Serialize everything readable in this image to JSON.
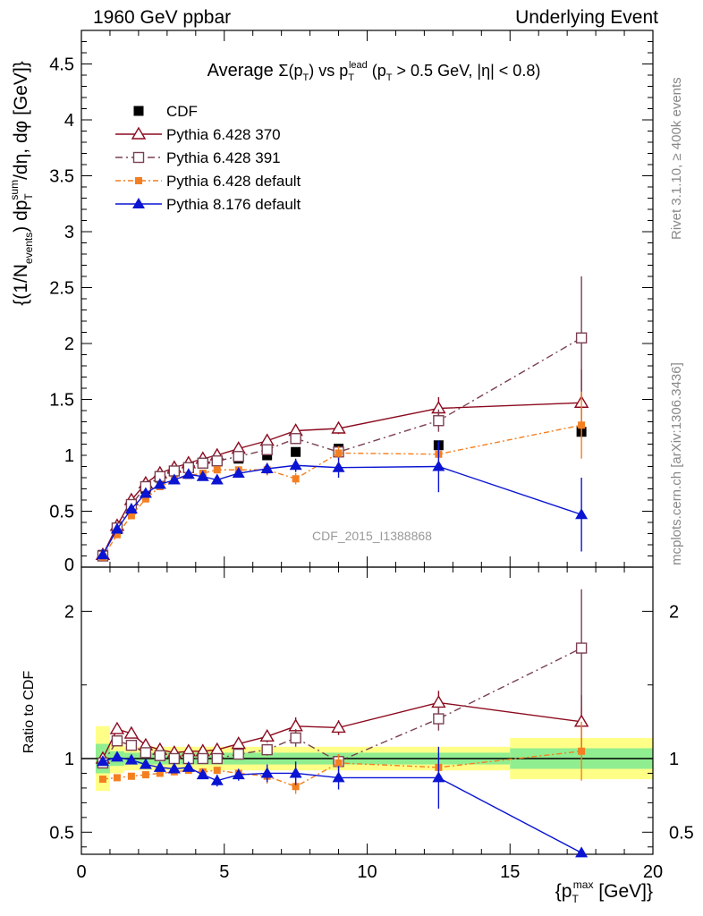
{
  "header": {
    "left": "1960 GeV ppbar",
    "right": "Underlying Event"
  },
  "side_labels": {
    "rivet": "Rivet 3.1.10, ≥ 400k events",
    "mcplots": "mcplots.cern.ch [arXiv:1306.3436]"
  },
  "chart_data": [
    {
      "type": "line",
      "title": "Average Σ(p_T) vs p_T^lead (p_T > 0.5 GeV, |η| < 0.8)",
      "ylabel": "{(1/N_events) dp_T^sum/dη, dφ [GeV]}",
      "xlim": [
        0,
        20
      ],
      "ylim": [
        0,
        4.8
      ],
      "yticks": [
        "0.5",
        "1",
        "1.5",
        "2",
        "2.5",
        "3",
        "3.5",
        "4",
        "4.5"
      ],
      "annotation": "CDF_2015_I1388868",
      "legend_position": "top-left",
      "series": [
        {
          "name": "CDF",
          "style": "data",
          "color": "#000000",
          "x": [
            0.75,
            1.25,
            1.75,
            2.25,
            2.75,
            3.25,
            3.75,
            4.25,
            4.75,
            5.5,
            6.5,
            7.5,
            9,
            12.5,
            17.5
          ],
          "y": [
            0.11,
            0.34,
            0.52,
            0.7,
            0.8,
            0.86,
            0.89,
            0.93,
            0.95,
            0.97,
            1.0,
            1.03,
            1.06,
            1.09,
            1.21
          ]
        },
        {
          "name": "Pythia 6.428 370",
          "style": "p370",
          "color": "#8b0a1e",
          "x": [
            0.75,
            1.25,
            1.75,
            2.25,
            2.75,
            3.25,
            3.75,
            4.25,
            4.75,
            5.5,
            6.5,
            7.5,
            9,
            12.5,
            17.5
          ],
          "y": [
            0.11,
            0.37,
            0.6,
            0.75,
            0.84,
            0.89,
            0.93,
            0.97,
            1.0,
            1.06,
            1.13,
            1.22,
            1.24,
            1.42,
            1.47
          ],
          "err": [
            0.005,
            0.01,
            0.01,
            0.01,
            0.01,
            0.01,
            0.01,
            0.02,
            0.02,
            0.03,
            0.03,
            0.05,
            0.05,
            0.1,
            0.3
          ]
        },
        {
          "name": "Pythia 6.428 391",
          "style": "p391",
          "color": "#7a4050",
          "x": [
            0.75,
            1.25,
            1.75,
            2.25,
            2.75,
            3.25,
            3.75,
            4.25,
            4.75,
            5.5,
            6.5,
            7.5,
            9,
            12.5,
            17.5
          ],
          "y": [
            0.1,
            0.35,
            0.56,
            0.72,
            0.81,
            0.86,
            0.89,
            0.93,
            0.95,
            0.99,
            1.05,
            1.15,
            1.03,
            1.31,
            2.05
          ],
          "err": [
            0.005,
            0.01,
            0.01,
            0.01,
            0.01,
            0.01,
            0.01,
            0.02,
            0.02,
            0.03,
            0.03,
            0.05,
            0.05,
            0.1,
            0.55
          ]
        },
        {
          "name": "Pythia 6.428 default",
          "style": "pdef",
          "color": "#f47f20",
          "x": [
            0.75,
            1.25,
            1.75,
            2.25,
            2.75,
            3.25,
            3.75,
            4.25,
            4.75,
            5.5,
            6.5,
            7.5,
            9,
            12.5,
            17.5
          ],
          "y": [
            0.09,
            0.29,
            0.46,
            0.61,
            0.72,
            0.78,
            0.82,
            0.84,
            0.87,
            0.87,
            0.87,
            0.79,
            1.02,
            1.01,
            1.27
          ],
          "err": [
            0.005,
            0.01,
            0.01,
            0.01,
            0.01,
            0.01,
            0.01,
            0.02,
            0.02,
            0.03,
            0.05,
            0.05,
            0.06,
            0.1,
            0.3
          ]
        },
        {
          "name": "Pythia 8.176 default",
          "style": "p8",
          "color": "#0a14d2",
          "x": [
            0.75,
            1.25,
            1.75,
            2.25,
            2.75,
            3.25,
            3.75,
            4.25,
            4.75,
            5.5,
            6.5,
            7.5,
            9,
            12.5,
            17.5
          ],
          "y": [
            0.11,
            0.34,
            0.52,
            0.66,
            0.74,
            0.78,
            0.83,
            0.81,
            0.78,
            0.84,
            0.88,
            0.91,
            0.89,
            0.9,
            0.47
          ],
          "err": [
            0.005,
            0.01,
            0.01,
            0.01,
            0.01,
            0.02,
            0.02,
            0.03,
            0.04,
            0.04,
            0.05,
            0.06,
            0.09,
            0.23,
            0.33
          ]
        }
      ]
    },
    {
      "type": "line",
      "ylabel": "Ratio to CDF",
      "xlabel": "{p_T^max [GeV]}",
      "xlim": [
        0,
        20
      ],
      "ylim": [
        0.35,
        2.3
      ],
      "xticks": [
        "0",
        "5",
        "10",
        "15",
        "20"
      ],
      "yticks": [
        "0.5",
        "1",
        "2"
      ],
      "ratio_bands": [
        {
          "x0": 0.5,
          "x1": 1.0,
          "inner": 0.1,
          "outer": 0.22
        },
        {
          "x0": 1.0,
          "x1": 1.5,
          "inner": 0.05,
          "outer": 0.1
        },
        {
          "x0": 1.5,
          "x1": 15.0,
          "inner": 0.04,
          "outer": 0.08
        },
        {
          "x0": 15.0,
          "x1": 20.0,
          "inner": 0.07,
          "outer": 0.14
        }
      ],
      "band_colors": {
        "inner": "#90ee90",
        "outer": "#ffff88"
      },
      "series": [
        {
          "name": "Pythia 6.428 370",
          "style": "p370",
          "color": "#8b0a1e",
          "x": [
            0.75,
            1.25,
            1.75,
            2.25,
            2.75,
            3.25,
            3.75,
            4.25,
            4.75,
            5.5,
            6.5,
            7.5,
            9,
            12.5,
            17.5
          ],
          "y": [
            1.0,
            1.2,
            1.17,
            1.09,
            1.06,
            1.04,
            1.05,
            1.05,
            1.06,
            1.1,
            1.15,
            1.22,
            1.21,
            1.38,
            1.25
          ],
          "err": [
            0.02,
            0.02,
            0.02,
            0.02,
            0.02,
            0.02,
            0.02,
            0.02,
            0.02,
            0.03,
            0.04,
            0.06,
            0.05,
            0.08,
            0.18
          ]
        },
        {
          "name": "Pythia 6.428 391",
          "style": "p391",
          "color": "#7a4050",
          "x": [
            0.75,
            1.25,
            1.75,
            2.25,
            2.75,
            3.25,
            3.75,
            4.25,
            4.75,
            5.5,
            6.5,
            7.5,
            9,
            12.5,
            17.5
          ],
          "y": [
            0.97,
            1.12,
            1.09,
            1.04,
            1.02,
            1.0,
            1.0,
            1.0,
            1.0,
            1.03,
            1.06,
            1.14,
            0.98,
            1.27,
            1.75
          ],
          "err": [
            0.02,
            0.02,
            0.02,
            0.02,
            0.02,
            0.02,
            0.02,
            0.02,
            0.02,
            0.03,
            0.04,
            0.06,
            0.05,
            0.08,
            0.4
          ]
        },
        {
          "name": "Pythia 6.428 default",
          "style": "pdef",
          "color": "#f47f20",
          "x": [
            0.75,
            1.25,
            1.75,
            2.25,
            2.75,
            3.25,
            3.75,
            4.25,
            4.75,
            5.5,
            6.5,
            7.5,
            9,
            12.5,
            17.5
          ],
          "y": [
            0.86,
            0.87,
            0.88,
            0.89,
            0.9,
            0.91,
            0.92,
            0.91,
            0.92,
            0.9,
            0.88,
            0.81,
            0.97,
            0.94,
            1.05
          ],
          "err": [
            0.02,
            0.02,
            0.02,
            0.02,
            0.02,
            0.02,
            0.02,
            0.02,
            0.02,
            0.03,
            0.05,
            0.05,
            0.06,
            0.1,
            0.2
          ]
        },
        {
          "name": "Pythia 8.176 default",
          "style": "p8",
          "color": "#0a14d2",
          "x": [
            0.75,
            1.25,
            1.75,
            2.25,
            2.75,
            3.25,
            3.75,
            4.25,
            4.75,
            5.5,
            6.5,
            7.5,
            9,
            12.5,
            17.5
          ],
          "y": [
            0.98,
            1.01,
            0.99,
            0.96,
            0.94,
            0.93,
            0.94,
            0.89,
            0.85,
            0.89,
            0.9,
            0.9,
            0.87,
            0.87,
            0.36
          ],
          "err": [
            0.01,
            0.01,
            0.01,
            0.01,
            0.01,
            0.02,
            0.02,
            0.03,
            0.04,
            0.04,
            0.06,
            0.08,
            0.08,
            0.21,
            0.0
          ]
        }
      ]
    }
  ]
}
